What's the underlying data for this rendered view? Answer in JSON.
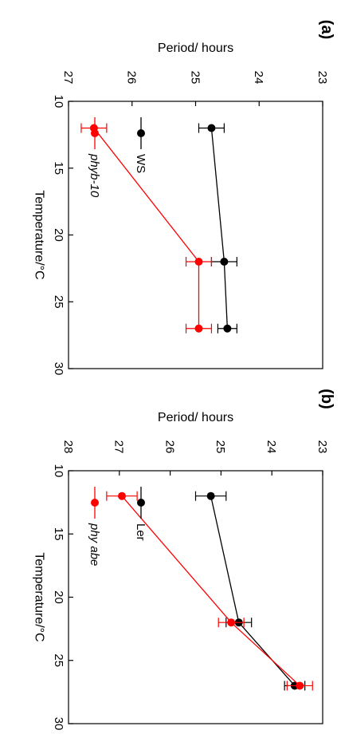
{
  "chart_data": [
    {
      "panel_label": "(a)",
      "type": "line",
      "xlabel": "Temperature/°C",
      "ylabel": "Period/ hours",
      "xlim": [
        10,
        30
      ],
      "ylim": [
        23,
        27
      ],
      "x_ticks": [
        10,
        15,
        20,
        25,
        30
      ],
      "y_ticks": [
        23,
        24,
        25,
        26,
        27
      ],
      "x": [
        12,
        22,
        27
      ],
      "series": [
        {
          "name": "WS",
          "italic": false,
          "color": "#000000",
          "values": [
            24.75,
            24.55,
            24.5
          ],
          "errors": [
            0.2,
            0.2,
            0.15
          ]
        },
        {
          "name": "phyb-10",
          "italic": true,
          "color": "#ff0000",
          "values": [
            26.6,
            24.95,
            24.95
          ],
          "errors": [
            0.2,
            0.2,
            0.2
          ]
        }
      ],
      "legend_position": "top-left"
    },
    {
      "panel_label": "(b)",
      "type": "line",
      "xlabel": "Temperature/°C",
      "ylabel": "Period/ hours",
      "xlim": [
        10,
        30
      ],
      "ylim": [
        23,
        28
      ],
      "x_ticks": [
        10,
        15,
        20,
        25,
        30
      ],
      "y_ticks": [
        23,
        24,
        25,
        26,
        27,
        28
      ],
      "x": [
        12,
        22,
        27
      ],
      "series": [
        {
          "name": "Ler",
          "italic": false,
          "color": "#000000",
          "values": [
            25.2,
            24.65,
            23.55
          ],
          "errors": [
            0.3,
            0.25,
            0.2
          ]
        },
        {
          "name": "phy abe",
          "italic": true,
          "color": "#ff0000",
          "values": [
            26.95,
            24.8,
            23.45
          ],
          "errors": [
            0.3,
            0.25,
            0.25
          ]
        }
      ],
      "legend_position": "top-left"
    }
  ]
}
